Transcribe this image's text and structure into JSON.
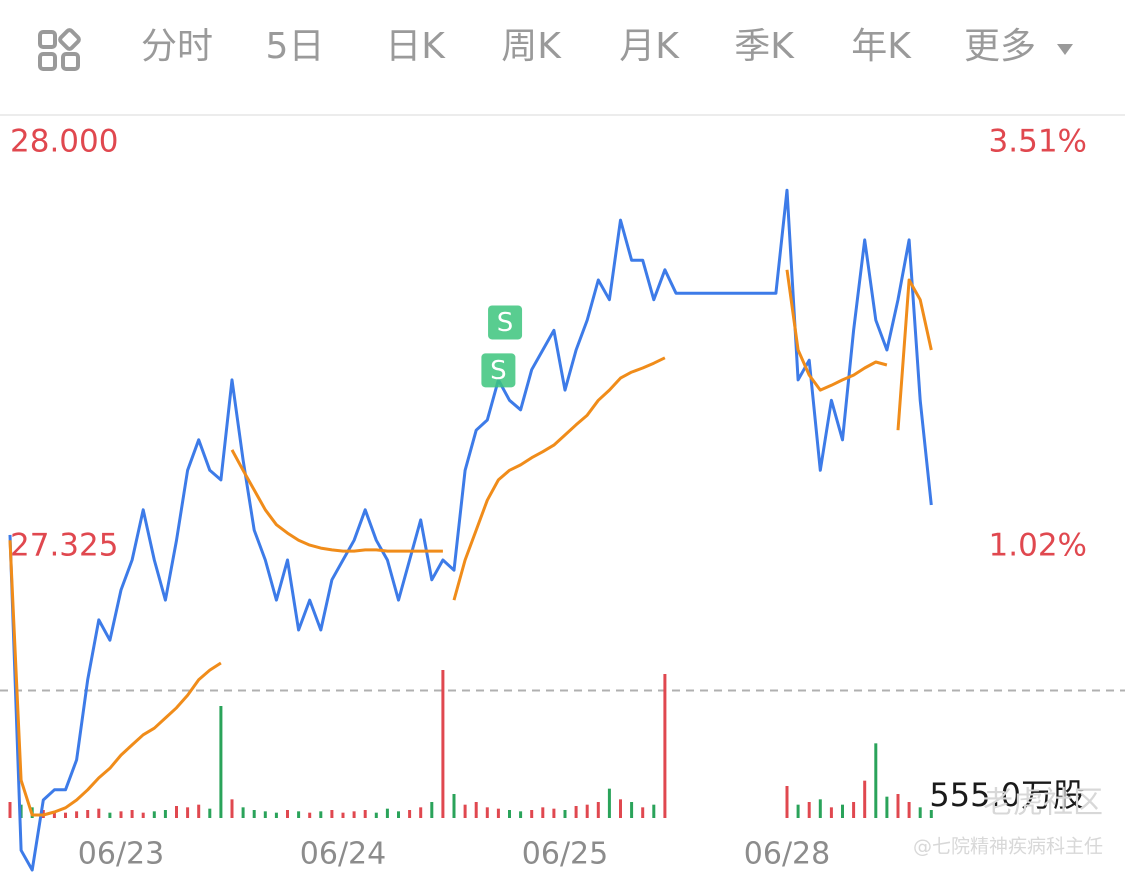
{
  "tabs": [
    "分时",
    "5日",
    "日K",
    "周K",
    "月K",
    "季K",
    "年K",
    "更多"
  ],
  "active_tab": 1,
  "watermark": {
    "brand": "老虎社区",
    "author": "@七院精神疾病科主任"
  },
  "chart_data": {
    "type": "line",
    "x": [
      0,
      1,
      2,
      3,
      4,
      5,
      6,
      7,
      8,
      9,
      10,
      11,
      12,
      13,
      14,
      15,
      16,
      17,
      18,
      19,
      20,
      21,
      22,
      23,
      24,
      25,
      26,
      27,
      28,
      29,
      30,
      31,
      32,
      33,
      34,
      35,
      36,
      37,
      38,
      39,
      40,
      41,
      42,
      43,
      44,
      45,
      46,
      47,
      48,
      49,
      50,
      51,
      52,
      53,
      54,
      55,
      56,
      57,
      58,
      59,
      60,
      61,
      62,
      63,
      64,
      65,
      66,
      67,
      68,
      69,
      70,
      71,
      72,
      73,
      74,
      75,
      76,
      77,
      78,
      79,
      80,
      81,
      82,
      83
    ],
    "series": [
      {
        "color": "#3d7be8",
        "values": [
          27.345,
          26.818,
          26.785,
          26.902,
          26.919,
          26.919,
          26.969,
          27.103,
          27.203,
          27.169,
          27.253,
          27.303,
          27.387,
          27.303,
          27.236,
          27.336,
          27.453,
          27.504,
          27.453,
          27.437,
          27.604,
          27.47,
          27.353,
          27.303,
          27.236,
          27.303,
          27.186,
          27.236,
          27.186,
          27.27,
          27.303,
          27.336,
          27.387,
          27.336,
          27.303,
          27.236,
          27.303,
          27.37,
          27.27,
          27.303,
          27.286,
          27.453,
          27.52,
          27.537,
          27.604,
          27.57,
          27.554,
          27.621,
          27.654,
          27.687,
          27.587,
          27.654,
          27.704,
          27.771,
          27.738,
          27.871,
          27.804,
          27.804,
          27.738,
          27.788,
          27.749,
          27.749,
          27.749,
          27.749,
          27.749,
          27.749,
          27.749,
          27.749,
          27.749,
          27.749,
          27.921,
          27.604,
          27.637,
          27.453,
          27.57,
          27.504,
          27.687,
          27.838,
          27.704,
          27.654,
          27.738,
          27.838,
          27.57,
          27.395
        ]
      },
      {
        "color": "#f08c1a",
        "values": [
          27.336,
          26.935,
          26.877,
          26.877,
          26.882,
          26.889,
          26.902,
          26.919,
          26.939,
          26.955,
          26.977,
          26.994,
          27.011,
          27.022,
          27.039,
          27.056,
          27.077,
          27.103,
          27.119,
          27.131,
          27.487,
          27.453,
          27.42,
          27.387,
          27.362,
          27.348,
          27.336,
          27.328,
          27.323,
          27.32,
          27.318,
          27.318,
          27.32,
          27.32,
          27.318,
          27.318,
          27.318,
          27.318,
          27.318,
          27.318,
          27.236,
          27.303,
          27.353,
          27.403,
          27.437,
          27.453,
          27.462,
          27.474,
          27.484,
          27.495,
          27.512,
          27.529,
          27.545,
          27.57,
          27.587,
          27.607,
          27.617,
          27.624,
          27.632,
          27.641,
          null,
          null,
          null,
          null,
          null,
          null,
          null,
          null,
          null,
          null,
          27.788,
          27.654,
          27.612,
          27.587,
          27.595,
          27.604,
          27.612,
          27.624,
          27.634,
          27.629,
          27.52,
          27.771,
          27.738,
          27.654
        ]
      }
    ],
    "volume": {
      "up_color": "#e0484f",
      "down_color": "#2aa35a",
      "ylim": [
        0,
        555.0
      ],
      "ylim_label": "555.0万股",
      "values": [
        60,
        50,
        40,
        30,
        25,
        20,
        25,
        30,
        35,
        20,
        25,
        30,
        20,
        25,
        30,
        45,
        40,
        50,
        35,
        420,
        70,
        40,
        30,
        25,
        20,
        30,
        25,
        20,
        25,
        30,
        20,
        25,
        30,
        20,
        35,
        25,
        30,
        40,
        60,
        555,
        90,
        50,
        60,
        40,
        35,
        30,
        25,
        30,
        40,
        35,
        30,
        45,
        50,
        60,
        110,
        70,
        60,
        40,
        50,
        540,
        null,
        null,
        null,
        null,
        null,
        null,
        null,
        null,
        null,
        null,
        120,
        50,
        60,
        70,
        40,
        50,
        60,
        140,
        280,
        80,
        90,
        60,
        40,
        30
      ]
    },
    "reference_line": 27.085,
    "trade_marks": [
      {
        "label": "S",
        "x": 44.6,
        "value": 27.7
      },
      {
        "label": "S",
        "x": 44,
        "value": 27.62
      }
    ],
    "xlim": [
      0,
      100
    ],
    "xticks": [
      {
        "value": 10,
        "label": "06/23"
      },
      {
        "value": 30,
        "label": "06/24"
      },
      {
        "value": 50,
        "label": "06/25"
      },
      {
        "value": 70,
        "label": "06/28"
      }
    ],
    "ylim": [
      26.78,
      28.03
    ],
    "yticks": [
      {
        "value": 28.0,
        "label": "28.000"
      },
      {
        "value": 27.325,
        "label": "27.325"
      }
    ],
    "y2lim": [
      -0.99,
      3.62
    ],
    "y2ticks": [
      {
        "value": 3.51,
        "label": "3.51%"
      },
      {
        "value": 1.02,
        "label": "1.02%"
      }
    ]
  }
}
